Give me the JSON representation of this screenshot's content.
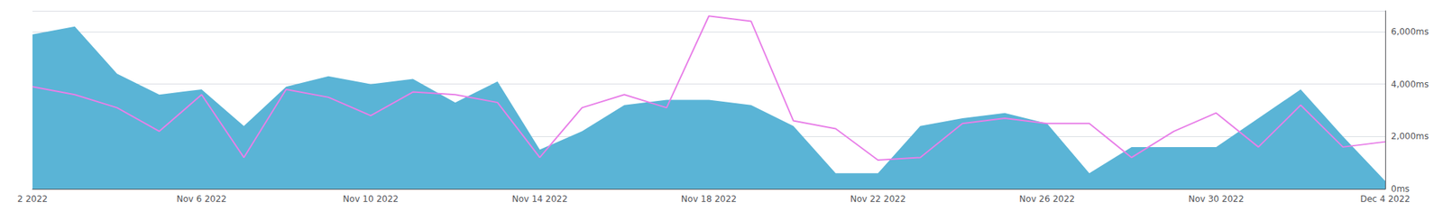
{
  "chart_data": {
    "type": "line",
    "categories": [
      "2 2022",
      null,
      null,
      null,
      "Nov 6 2022",
      null,
      null,
      null,
      "Nov 10 2022",
      null,
      null,
      null,
      "Nov 14 2022",
      null,
      null,
      null,
      "Nov 18 2022",
      null,
      null,
      null,
      "Nov 22 2022",
      null,
      null,
      null,
      "Nov 26 2022",
      null,
      null,
      null,
      "Nov 30 2022",
      null,
      null,
      null,
      "Dec 4 2022"
    ],
    "series": [
      {
        "type": "area",
        "color": "#5ab4d6",
        "values": [
          5900,
          6200,
          4400,
          3600,
          3800,
          2400,
          3900,
          4300,
          4000,
          4200,
          3300,
          4100,
          1500,
          2200,
          3200,
          3400,
          3400,
          3200,
          2400,
          600,
          600,
          2400,
          2700,
          2900,
          2500,
          600,
          1600,
          1600,
          1600,
          2700,
          3800,
          2000,
          300
        ]
      },
      {
        "type": "line",
        "color": "#e87fe8",
        "values": [
          3900,
          3600,
          3100,
          2200,
          3600,
          1200,
          3800,
          3500,
          2800,
          3700,
          3600,
          3300,
          1200,
          3100,
          3600,
          3100,
          6600,
          6400,
          2600,
          2300,
          1100,
          1200,
          2500,
          2700,
          2500,
          2500,
          1200,
          2200,
          2900,
          1600,
          3200,
          1600,
          1800
        ]
      }
    ],
    "ylim": [
      0,
      6800
    ],
    "yticks": [
      {
        "value": 0,
        "label": "0ms"
      },
      {
        "value": 2000,
        "label": "2,000ms"
      },
      {
        "value": 4000,
        "label": "4,000ms"
      },
      {
        "value": 6000,
        "label": "6,000ms"
      }
    ],
    "grid": true
  }
}
